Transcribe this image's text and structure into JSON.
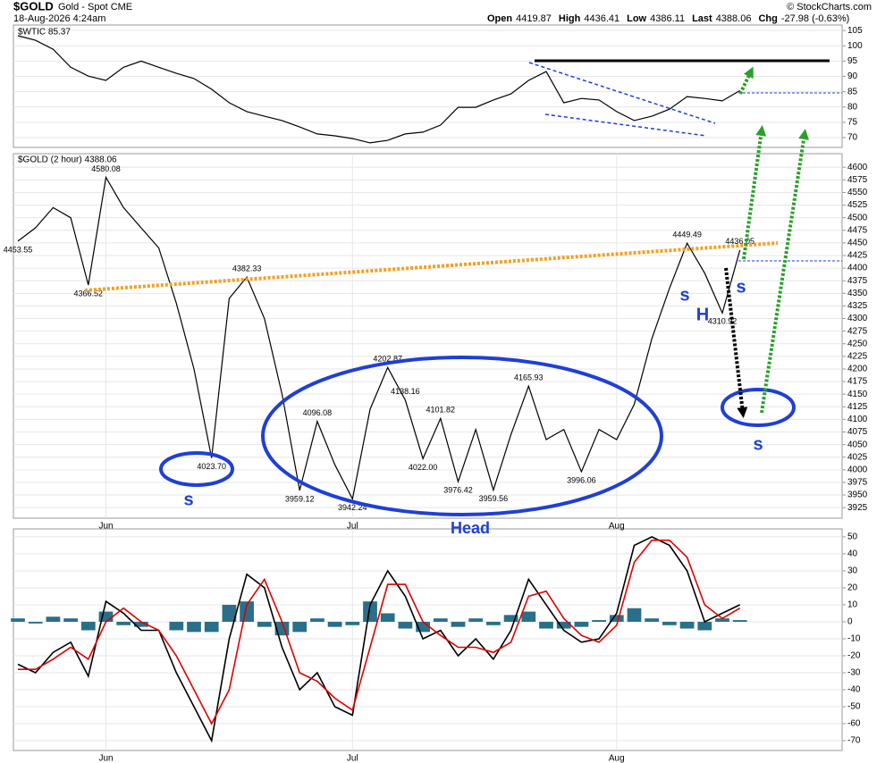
{
  "header": {
    "symbol": "$GOLD",
    "name": "Gold - Spot CME",
    "date": "18-Aug-2026 4:24am",
    "credit": "© StockCharts.com",
    "quote": [
      {
        "label": "Open",
        "value": "4419.87"
      },
      {
        "label": "High",
        "value": "4436.41"
      },
      {
        "label": "Low",
        "value": "4386.11"
      },
      {
        "label": "Last",
        "value": "4388.06"
      },
      {
        "label": "Chg",
        "value": "-27.98 (-0.63%)"
      }
    ]
  },
  "chart_data": [
    {
      "type": "line",
      "label": "$WTIC 85.37",
      "ylim": [
        66.8,
        106.8
      ],
      "yticks": [
        70,
        75,
        80,
        85,
        90,
        95,
        100,
        105
      ],
      "grid": true,
      "series": [
        {
          "name": "$WTIC",
          "color": "#000000",
          "values": [
            103.3,
            101.8,
            98.9,
            93,
            90.1,
            88.7,
            93,
            95,
            93,
            91,
            89.3,
            85.8,
            81.4,
            78.5,
            77,
            75.6,
            73.5,
            71.2,
            70.6,
            69.7,
            68.3,
            69.1,
            71.2,
            71.8,
            74.1,
            79.9,
            79.9,
            82.3,
            84.3,
            88.7,
            91.6,
            81.4,
            82.8,
            82.3,
            78.5,
            75.6,
            77,
            79.3,
            83.4,
            82.8,
            82,
            85.37,
            null,
            null,
            null,
            null,
            null
          ]
        }
      ]
    },
    {
      "type": "line",
      "label": "$GOLD (2 hour) 4388.06",
      "ylim": [
        3904,
        4627
      ],
      "yticks": [
        3925,
        3950,
        3975,
        4000,
        4025,
        4050,
        4075,
        4100,
        4125,
        4150,
        4175,
        4200,
        4225,
        4250,
        4275,
        4300,
        4325,
        4350,
        4375,
        4400,
        4425,
        4450,
        4475,
        4500,
        4525,
        4550,
        4575,
        4600
      ],
      "grid": true,
      "categories": [
        null,
        null,
        null,
        null,
        null,
        "Jun",
        null,
        null,
        null,
        null,
        null,
        null,
        null,
        null,
        null,
        null,
        null,
        null,
        null,
        "Jul",
        null,
        null,
        null,
        null,
        null,
        null,
        null,
        null,
        null,
        null,
        null,
        null,
        null,
        null,
        "Aug",
        null,
        null,
        null,
        null,
        null,
        null,
        null,
        null,
        null,
        null,
        null,
        null
      ],
      "annotations": [
        "s",
        "Head",
        "s",
        "H",
        "s",
        "s"
      ],
      "series": [
        {
          "name": "$GOLD",
          "color": "#000000",
          "values": [
            4453.55,
            4480,
            4520,
            4500,
            4366.52,
            4580.08,
            4520,
            4480,
            4440,
            4330,
            4200,
            4023.7,
            4340,
            4382.33,
            4300,
            4150,
            3959.12,
            4096.08,
            4010,
            3942.24,
            4120,
            4202.87,
            4138.16,
            4022,
            4101.82,
            3976.42,
            4080,
            3959.56,
            4070,
            4165.93,
            4060,
            4080,
            3996.06,
            4080,
            4060,
            4130,
            4260,
            4360,
            4449.49,
            4390,
            4310.92,
            4436.05,
            null,
            null,
            null,
            null,
            null
          ],
          "value_labels": [
            "4453.55",
            null,
            null,
            null,
            "4366.52",
            "4580.08",
            null,
            null,
            null,
            null,
            null,
            "4023.70",
            null,
            "4382.33",
            null,
            null,
            "3959.12",
            "4096.08",
            null,
            "3942.24",
            null,
            "4202.87",
            "4138.16",
            "4022.00",
            "4101.82",
            "3976.42",
            null,
            "3959.56",
            null,
            "4165.93",
            null,
            null,
            "3996.06",
            null,
            null,
            null,
            null,
            null,
            "4449.49",
            null,
            "4310.92",
            "4436.05",
            null,
            null,
            null,
            null,
            null
          ]
        }
      ]
    },
    {
      "type": "line",
      "ylim": [
        -75.8,
        54.7
      ],
      "yticks": [
        -70,
        -60,
        -50,
        -40,
        -30,
        -20,
        -10,
        0,
        10,
        20,
        30,
        40,
        50
      ],
      "grid": true,
      "categories": [
        null,
        null,
        null,
        null,
        null,
        "Jun",
        null,
        null,
        null,
        null,
        null,
        null,
        null,
        null,
        null,
        null,
        null,
        null,
        null,
        "Jul",
        null,
        null,
        null,
        null,
        null,
        null,
        null,
        null,
        null,
        null,
        null,
        null,
        null,
        null,
        "Aug",
        null,
        null,
        null,
        null,
        null,
        null,
        null,
        null,
        null,
        null,
        null,
        null
      ],
      "series": [
        {
          "name": "Histogram",
          "type": "bar",
          "color": "#2a6f8a",
          "values": [
            2,
            -1,
            3,
            2,
            -5,
            6,
            -2,
            -3,
            0,
            -5,
            -6,
            -6,
            10,
            12,
            -3,
            -8,
            -6,
            2,
            -3,
            -2,
            12,
            5,
            -4,
            -6,
            2,
            -3,
            2,
            -2,
            4,
            6,
            -4,
            -4,
            -3,
            1,
            4,
            8,
            2,
            -2,
            -4,
            -5,
            2,
            1,
            null,
            null,
            null,
            null,
            null
          ]
        },
        {
          "name": "Fast",
          "color": "#000000",
          "values": [
            -25,
            -30,
            -18,
            -12,
            -32,
            12,
            5,
            -5,
            -5,
            -30,
            -50,
            -70,
            -10,
            28,
            20,
            -15,
            -40,
            -30,
            -50,
            -55,
            10,
            30,
            15,
            -10,
            -5,
            -20,
            -10,
            -22,
            -5,
            25,
            10,
            -5,
            -12,
            -10,
            5,
            45,
            50,
            45,
            30,
            0,
            5,
            10,
            null,
            null,
            null,
            null,
            null
          ]
        },
        {
          "name": "Signal",
          "color": "#e00000",
          "values": [
            -28,
            -28,
            -22,
            -15,
            -22,
            0,
            8,
            0,
            -5,
            -20,
            -40,
            -60,
            -40,
            10,
            25,
            0,
            -30,
            -35,
            -45,
            -52,
            -15,
            22,
            22,
            0,
            -8,
            -15,
            -15,
            -18,
            -12,
            15,
            18,
            2,
            -8,
            -12,
            -2,
            35,
            48,
            48,
            38,
            10,
            2,
            8,
            null,
            null,
            null,
            null,
            null
          ]
        }
      ]
    }
  ]
}
